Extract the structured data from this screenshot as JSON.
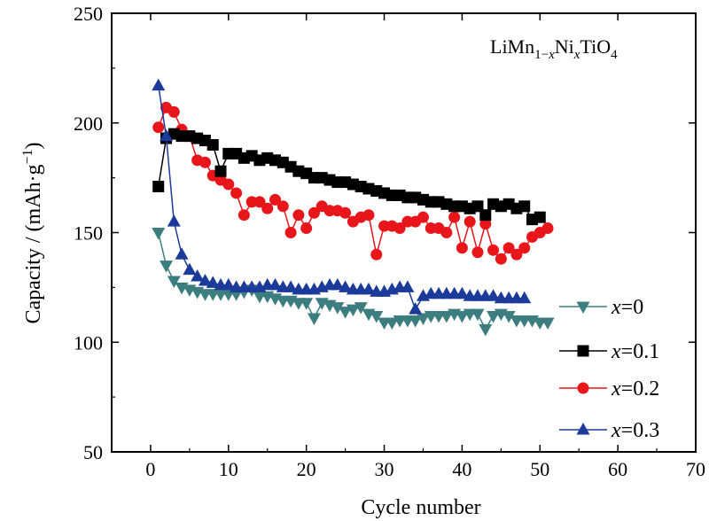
{
  "chart_data": {
    "type": "line",
    "title": "LiMn1−xNixTiO4",
    "title_parts": {
      "base1": "LiMn",
      "sub1": "1−",
      "subvar1": "x",
      "mid": "Ni",
      "sub2": "x",
      "end": "TiO",
      "sub3": "4"
    },
    "xlabel": "Cycle number",
    "ylabel_parts": {
      "main": "Capacity / (mAh·g",
      "sup": "−1",
      "close": ")"
    },
    "xlim": [
      -5,
      70
    ],
    "ylim": [
      50,
      250
    ],
    "xticks": [
      0,
      10,
      20,
      30,
      40,
      50,
      60,
      70
    ],
    "yticks": [
      50,
      100,
      150,
      200,
      250
    ],
    "grid": false,
    "legend_position": "right",
    "series": [
      {
        "name": "x=0",
        "var": "x",
        "rest": "=0",
        "color": "#3c7d80",
        "marker": "triangle-down",
        "x": [
          1,
          2,
          3,
          4,
          5,
          6,
          7,
          8,
          9,
          10,
          11,
          12,
          13,
          14,
          15,
          16,
          17,
          18,
          19,
          20,
          21,
          22,
          23,
          24,
          25,
          26,
          27,
          28,
          29,
          30,
          31,
          32,
          33,
          34,
          35,
          36,
          37,
          38,
          39,
          40,
          41,
          42,
          43,
          44,
          45,
          46,
          47,
          48,
          49,
          50,
          51
        ],
        "y": [
          150,
          135,
          128,
          125,
          124,
          123,
          122,
          122,
          122,
          122,
          122,
          123,
          124,
          121,
          121,
          120,
          119,
          119,
          118,
          118,
          111,
          118,
          117,
          116,
          114,
          115,
          116,
          113,
          112,
          109,
          109,
          110,
          110,
          110,
          111,
          112,
          112,
          112,
          113,
          112,
          113,
          113,
          106,
          112,
          113,
          112,
          110,
          110,
          110,
          109,
          109
        ]
      },
      {
        "name": "x=0.1",
        "var": "x",
        "rest": "=0.1",
        "color": "#000000",
        "marker": "square",
        "x": [
          1,
          2,
          3,
          4,
          5,
          6,
          7,
          8,
          9,
          10,
          11,
          12,
          13,
          14,
          15,
          16,
          17,
          18,
          19,
          20,
          21,
          22,
          23,
          24,
          25,
          26,
          27,
          28,
          29,
          30,
          31,
          32,
          33,
          34,
          35,
          36,
          37,
          38,
          39,
          40,
          41,
          42,
          43,
          44,
          45,
          46,
          47,
          48,
          49,
          50
        ],
        "y": [
          171,
          193,
          195,
          194,
          194,
          193,
          192,
          190,
          178,
          186,
          186,
          184,
          185,
          183,
          184,
          183,
          182,
          180,
          178,
          177,
          175,
          175,
          174,
          173,
          173,
          172,
          171,
          170,
          169,
          168,
          167,
          167,
          166,
          166,
          165,
          164,
          164,
          163,
          162,
          162,
          161,
          162,
          158,
          163,
          162,
          163,
          161,
          162,
          156,
          157
        ]
      },
      {
        "name": "x=0.2",
        "var": "x",
        "rest": "=0.2",
        "color": "#e8151b",
        "marker": "circle",
        "x": [
          1,
          2,
          3,
          4,
          5,
          6,
          7,
          8,
          9,
          10,
          11,
          12,
          13,
          14,
          15,
          16,
          17,
          18,
          19,
          20,
          21,
          22,
          23,
          24,
          25,
          26,
          27,
          28,
          29,
          30,
          31,
          32,
          33,
          34,
          35,
          36,
          37,
          38,
          39,
          40,
          41,
          42,
          43,
          44,
          45,
          46,
          47,
          48,
          49,
          50,
          51
        ],
        "y": [
          198,
          207,
          205,
          197,
          194,
          183,
          182,
          176,
          174,
          172,
          168,
          158,
          164,
          164,
          161,
          165,
          162,
          150,
          158,
          152,
          159,
          162,
          160,
          160,
          159,
          155,
          157,
          158,
          140,
          153,
          153,
          152,
          155,
          155,
          157,
          152,
          152,
          150,
          157,
          143,
          155,
          141,
          154,
          142,
          138,
          143,
          140,
          143,
          148,
          150,
          152
        ]
      },
      {
        "name": "x=0.3",
        "var": "x",
        "rest": "=0.3",
        "color": "#1b3a9a",
        "marker": "triangle-up",
        "x": [
          1,
          2,
          3,
          4,
          5,
          6,
          7,
          8,
          9,
          10,
          11,
          12,
          13,
          14,
          15,
          16,
          17,
          18,
          19,
          20,
          21,
          22,
          23,
          24,
          25,
          26,
          27,
          28,
          29,
          30,
          31,
          32,
          33,
          34,
          35,
          36,
          37,
          38,
          39,
          40,
          41,
          42,
          43,
          44,
          45,
          46,
          47,
          48
        ],
        "y": [
          217,
          194,
          155,
          140,
          133,
          130,
          128,
          127,
          126,
          126,
          125,
          125,
          125,
          125,
          126,
          126,
          125,
          125,
          124,
          124,
          124,
          125,
          126,
          126,
          125,
          124,
          124,
          124,
          123,
          123,
          124,
          125,
          125,
          115,
          121,
          122,
          122,
          122,
          122,
          122,
          121,
          121,
          121,
          121,
          120,
          120,
          120,
          120
        ]
      }
    ]
  }
}
